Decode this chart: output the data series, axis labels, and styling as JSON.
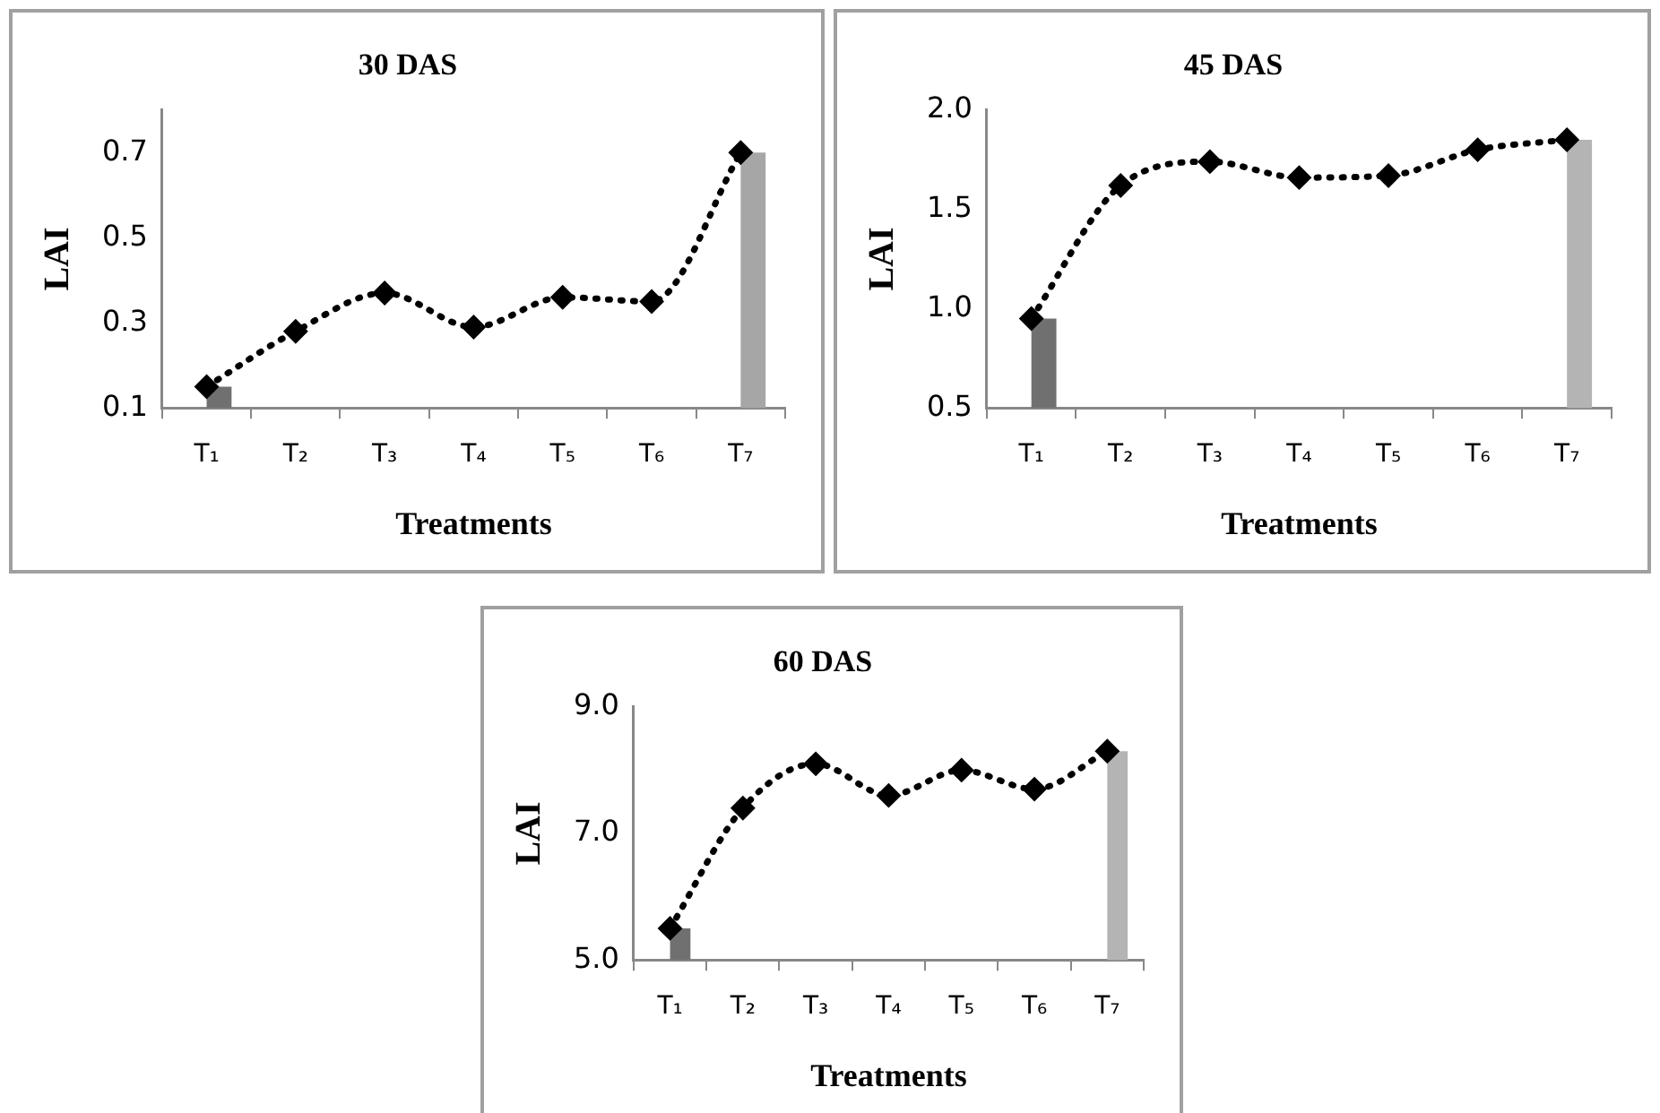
{
  "chart_data": [
    {
      "type": "bar",
      "title": "30 DAS",
      "xlabel": "Treatments",
      "ylabel": "LAI",
      "categories": [
        "T₁",
        "T₂",
        "T₃",
        "T₄",
        "T₅",
        "T₆",
        "T₇"
      ],
      "ylim": [
        0.1,
        0.8
      ],
      "yticks": [
        0.1,
        0.3,
        0.5,
        0.7
      ],
      "grid": false,
      "legend": false,
      "series": [
        {
          "type": "bar",
          "colors": [
            "#707070",
            null,
            null,
            null,
            null,
            null,
            "#a6a6a6"
          ],
          "values": [
            0.15,
            null,
            null,
            null,
            null,
            null,
            0.7
          ]
        },
        {
          "type": "line",
          "color": "#000000",
          "marker": "diamond",
          "line_style": "dotted",
          "values": [
            0.15,
            0.28,
            0.37,
            0.29,
            0.36,
            0.35,
            0.7
          ]
        }
      ]
    },
    {
      "type": "bar",
      "title": "45 DAS",
      "xlabel": "Treatments",
      "ylabel": "LAI",
      "categories": [
        "T₁",
        "T₂",
        "T₃",
        "T₄",
        "T₅",
        "T₆",
        "T₇"
      ],
      "ylim": [
        0.5,
        2.0
      ],
      "yticks": [
        {
          "value": 0.5,
          "label": "0.5"
        },
        {
          "value": 1.0,
          "label": "1.0"
        },
        {
          "value": 1.5,
          "label": "1.5"
        },
        {
          "value": 2.0,
          "label": "2.0"
        }
      ],
      "grid": false,
      "legend": false,
      "series": [
        {
          "type": "bar",
          "colors": [
            "#707070",
            null,
            null,
            null,
            null,
            null,
            "#b4b4b4"
          ],
          "values": [
            0.95,
            null,
            null,
            null,
            null,
            null,
            1.85
          ]
        },
        {
          "type": "line",
          "color": "#000000",
          "marker": "diamond",
          "line_style": "dotted",
          "values": [
            0.95,
            1.62,
            1.74,
            1.66,
            1.67,
            1.8,
            1.85
          ]
        }
      ]
    },
    {
      "type": "bar",
      "title": "60 DAS",
      "xlabel": "Treatments",
      "ylabel": "LAI",
      "categories": [
        "T₁",
        "T₂",
        "T₃",
        "T₄",
        "T₅",
        "T₆",
        "T₇"
      ],
      "ylim": [
        5.0,
        9.0
      ],
      "yticks": [
        {
          "value": 5.0,
          "label": "5.0"
        },
        {
          "value": 7.0,
          "label": "7.0"
        },
        {
          "value": 9.0,
          "label": "9.0"
        }
      ],
      "grid": false,
      "legend": false,
      "series": [
        {
          "type": "bar",
          "colors": [
            "#707070",
            null,
            null,
            null,
            null,
            null,
            "#b4b4b4"
          ],
          "values": [
            5.5,
            null,
            null,
            null,
            null,
            null,
            8.3
          ]
        },
        {
          "type": "line",
          "color": "#000000",
          "marker": "diamond",
          "line_style": "dotted",
          "values": [
            5.5,
            7.4,
            8.1,
            7.6,
            8.0,
            7.7,
            8.3
          ]
        }
      ]
    }
  ]
}
